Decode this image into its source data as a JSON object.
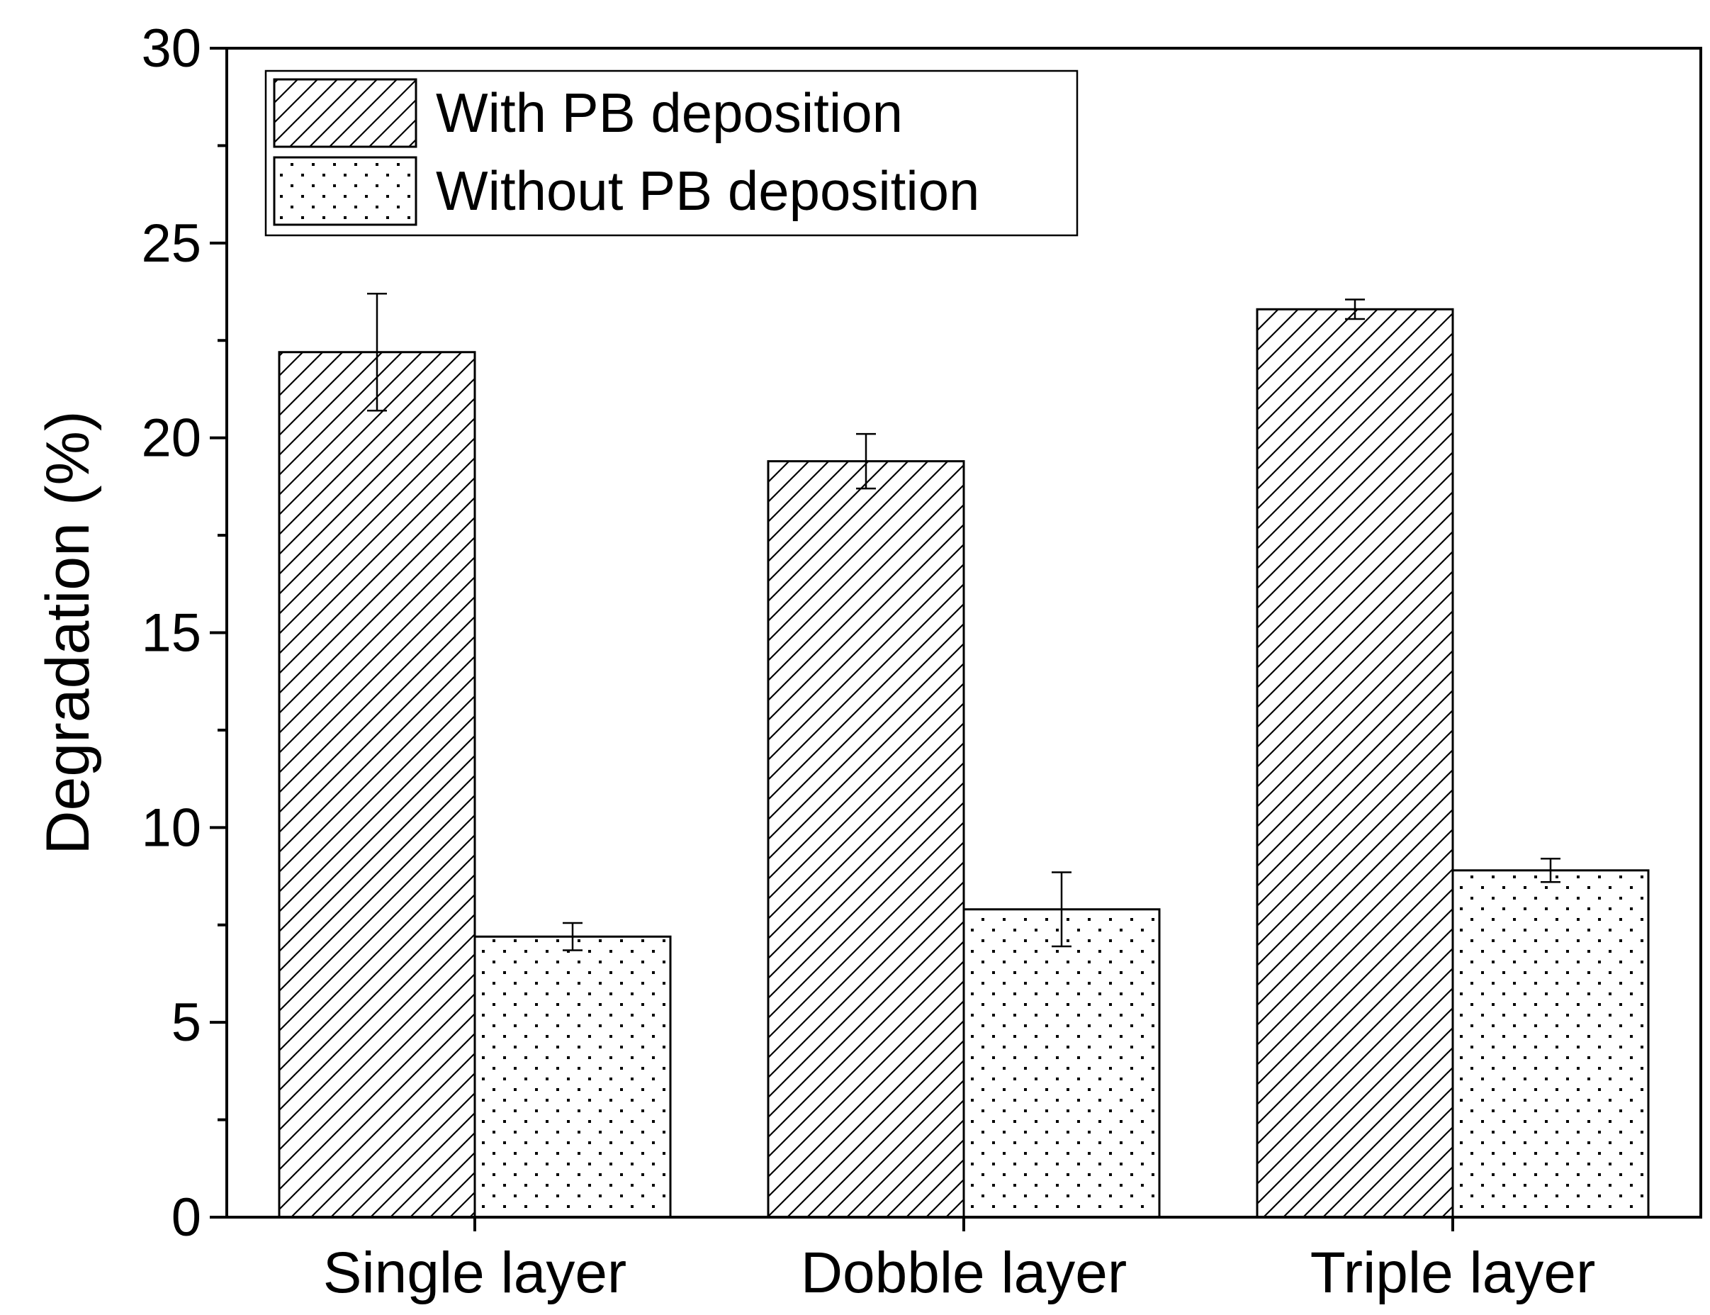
{
  "chart_data": {
    "type": "bar",
    "title": "",
    "xlabel": "",
    "ylabel": "Degradation (%)",
    "ylim": [
      0,
      30
    ],
    "yticks": [
      0,
      5,
      10,
      15,
      20,
      25,
      30
    ],
    "categories": [
      "Single layer",
      "Dobble layer",
      "Triple layer"
    ],
    "series": [
      {
        "name": "With PB deposition",
        "pattern": "diagonal-hatch",
        "values": [
          22.2,
          19.4,
          23.3
        ],
        "errors": [
          1.5,
          0.7,
          0.25
        ]
      },
      {
        "name": "Without PB deposition",
        "pattern": "dots",
        "values": [
          7.2,
          7.9,
          8.9
        ],
        "errors": [
          0.35,
          0.95,
          0.3
        ]
      }
    ],
    "legend": "top-left",
    "grid": false,
    "colors": {
      "stroke": "#000000",
      "fill": "#ffffff"
    }
  }
}
